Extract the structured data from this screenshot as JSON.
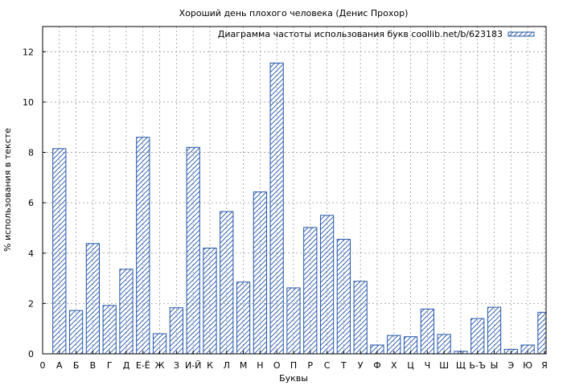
{
  "chart_data": {
    "type": "bar",
    "title": "Хороший день плохого человека (Денис Прохор)",
    "xlabel": "Буквы",
    "ylabel": "% использования в тексте",
    "legend": "Диаграмма частоты использования букв coollib.net/b/623183",
    "legend_position": "top-right",
    "grid": true,
    "ylim": [
      0,
      13
    ],
    "yticks": [
      0,
      2,
      4,
      6,
      8,
      10,
      12
    ],
    "x_first_tick": "0",
    "categories": [
      "А",
      "Б",
      "В",
      "Г",
      "Д",
      "Е-Ё",
      "Ж",
      "З",
      "И-Й",
      "К",
      "Л",
      "М",
      "Н",
      "О",
      "П",
      "Р",
      "С",
      "Т",
      "У",
      "Ф",
      "Х",
      "Ц",
      "Ч",
      "Ш",
      "Щ",
      "Ь-Ъ",
      "Ы",
      "Э",
      "Ю",
      "Я"
    ],
    "values": [
      8.15,
      1.72,
      4.38,
      1.92,
      3.36,
      8.6,
      0.8,
      1.83,
      8.2,
      4.2,
      5.65,
      2.85,
      6.43,
      11.55,
      2.62,
      5.02,
      5.5,
      4.55,
      2.88,
      0.35,
      0.73,
      0.68,
      1.78,
      0.77,
      0.1,
      1.4,
      1.85,
      0.18,
      0.35,
      1.65
    ],
    "colors": {
      "bar_stroke": "#2255aa",
      "hatch": "#2255aa",
      "grid": "#999999"
    }
  }
}
